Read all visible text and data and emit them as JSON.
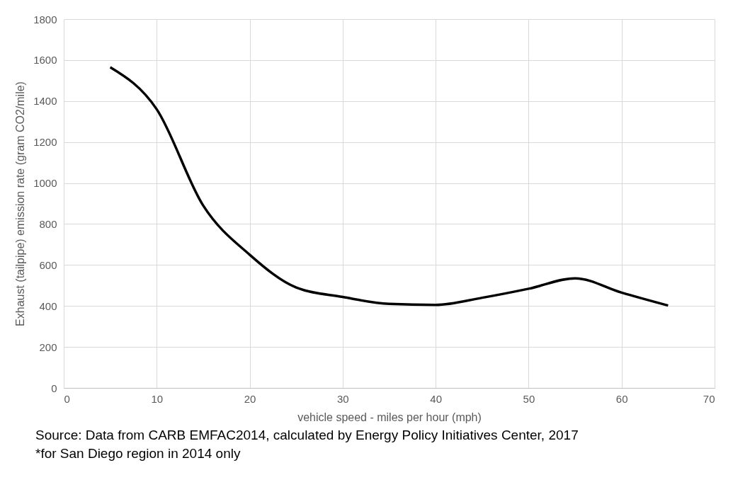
{
  "chart_data": {
    "type": "line",
    "xlabel": "vehicle speed - miles per hour (mph)",
    "ylabel": "Exhaust (tailpipe) emission rate (gram CO2/mile)",
    "x": [
      5,
      10,
      15,
      20,
      25,
      30,
      35,
      40,
      45,
      50,
      55,
      60,
      65
    ],
    "series": [
      {
        "color": "#000000",
        "values": [
          1565,
          1360,
          890,
          650,
          490,
          444,
          410,
          405,
          440,
          484,
          535,
          465,
          402
        ]
      }
    ],
    "xlim": [
      0,
      70
    ],
    "xticks": [
      0,
      10,
      20,
      30,
      40,
      50,
      60,
      70
    ],
    "ylim": [
      0,
      1800
    ],
    "yticks": [
      0,
      200,
      400,
      600,
      800,
      1000,
      1200,
      1400,
      1600,
      1800
    ],
    "grid": true,
    "legend": false,
    "marker": "none",
    "line_style": "solid",
    "annotations": [
      "Source: Data from CARB EMFAC2014, calculated by Energy Policy Initiatives Center, 2017",
      "*for San Diego region in 2014 only"
    ]
  }
}
